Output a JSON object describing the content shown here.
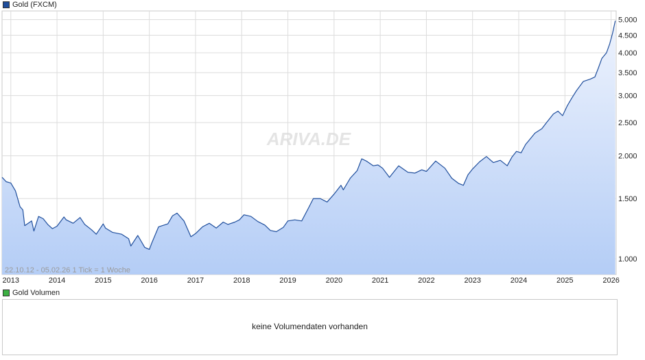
{
  "price_legend": {
    "label": "Gold (FXCM)",
    "color": "#1f4e9c"
  },
  "volume_legend": {
    "label": "Gold Volumen",
    "color": "#3cb043"
  },
  "volume_panel": {
    "message": "keine Volumendaten vorhanden"
  },
  "watermark": "ARIVA.DE",
  "range_info": "22.10.12 - 05.02.26   1 Tick = 1 Woche",
  "chart_data": {
    "type": "area",
    "title": "Gold (FXCM)",
    "y_scale": "log",
    "ylim": [
      900,
      5300
    ],
    "xlim": [
      2012.81,
      2026.11
    ],
    "y_ticks": [
      1000,
      1500,
      2000,
      2500,
      3000,
      3500,
      4000,
      4500,
      5000
    ],
    "y_tick_labels": [
      "1.000",
      "1.500",
      "2.000",
      "2.500",
      "3.000",
      "3.500",
      "4.000",
      "4.500",
      "5.000"
    ],
    "x_ticks": [
      2013,
      2014,
      2015,
      2016,
      2017,
      2018,
      2019,
      2020,
      2021,
      2022,
      2023,
      2024,
      2025,
      2026
    ],
    "x_tick_labels": [
      "2013",
      "2014",
      "2015",
      "2016",
      "2017",
      "2018",
      "2019",
      "2020",
      "2021",
      "2022",
      "2023",
      "2024",
      "2025",
      "2026"
    ],
    "grid": true,
    "series": [
      {
        "name": "Gold (FXCM)",
        "line_color": "#1f4e9c",
        "x": [
          2012.81,
          2012.9,
          2013.0,
          2013.1,
          2013.2,
          2013.26,
          2013.3,
          2013.45,
          2013.5,
          2013.6,
          2013.7,
          2013.8,
          2013.9,
          2014.0,
          2014.15,
          2014.2,
          2014.35,
          2014.5,
          2014.6,
          2014.75,
          2014.85,
          2015.0,
          2015.05,
          2015.2,
          2015.4,
          2015.55,
          2015.6,
          2015.75,
          2015.9,
          2016.0,
          2016.05,
          2016.2,
          2016.4,
          2016.5,
          2016.6,
          2016.75,
          2016.9,
          2017.0,
          2017.15,
          2017.3,
          2017.45,
          2017.6,
          2017.7,
          2017.85,
          2017.95,
          2018.05,
          2018.2,
          2018.35,
          2018.5,
          2018.62,
          2018.75,
          2018.9,
          2019.0,
          2019.15,
          2019.3,
          2019.45,
          2019.55,
          2019.7,
          2019.85,
          2020.0,
          2020.15,
          2020.2,
          2020.35,
          2020.5,
          2020.6,
          2020.7,
          2020.85,
          2020.95,
          2021.05,
          2021.2,
          2021.4,
          2021.6,
          2021.75,
          2021.9,
          2022.0,
          2022.2,
          2022.4,
          2022.55,
          2022.7,
          2022.8,
          2022.9,
          2023.0,
          2023.15,
          2023.3,
          2023.45,
          2023.6,
          2023.75,
          2023.85,
          2023.95,
          2024.05,
          2024.15,
          2024.2,
          2024.35,
          2024.5,
          2024.6,
          2024.75,
          2024.85,
          2024.95,
          2025.05,
          2025.15,
          2025.25,
          2025.4,
          2025.55,
          2025.65,
          2025.72,
          2025.8,
          2025.9,
          2025.97,
          2026.03,
          2026.09
        ],
        "y": [
          1730,
          1680,
          1665,
          1580,
          1420,
          1390,
          1250,
          1290,
          1205,
          1330,
          1310,
          1260,
          1225,
          1245,
          1325,
          1300,
          1270,
          1320,
          1260,
          1215,
          1180,
          1265,
          1230,
          1195,
          1180,
          1145,
          1090,
          1170,
          1080,
          1065,
          1110,
          1240,
          1265,
          1335,
          1360,
          1290,
          1160,
          1185,
          1240,
          1270,
          1230,
          1280,
          1260,
          1280,
          1300,
          1345,
          1330,
          1285,
          1255,
          1210,
          1200,
          1235,
          1290,
          1300,
          1290,
          1410,
          1500,
          1500,
          1465,
          1545,
          1640,
          1590,
          1720,
          1810,
          1960,
          1930,
          1870,
          1880,
          1840,
          1730,
          1870,
          1790,
          1780,
          1820,
          1800,
          1930,
          1840,
          1720,
          1660,
          1640,
          1760,
          1830,
          1920,
          1990,
          1910,
          1940,
          1870,
          1980,
          2060,
          2040,
          2160,
          2200,
          2330,
          2400,
          2500,
          2650,
          2700,
          2620,
          2800,
          2950,
          3100,
          3300,
          3350,
          3400,
          3600,
          3850,
          4000,
          4250,
          4550,
          4960
        ]
      }
    ]
  }
}
